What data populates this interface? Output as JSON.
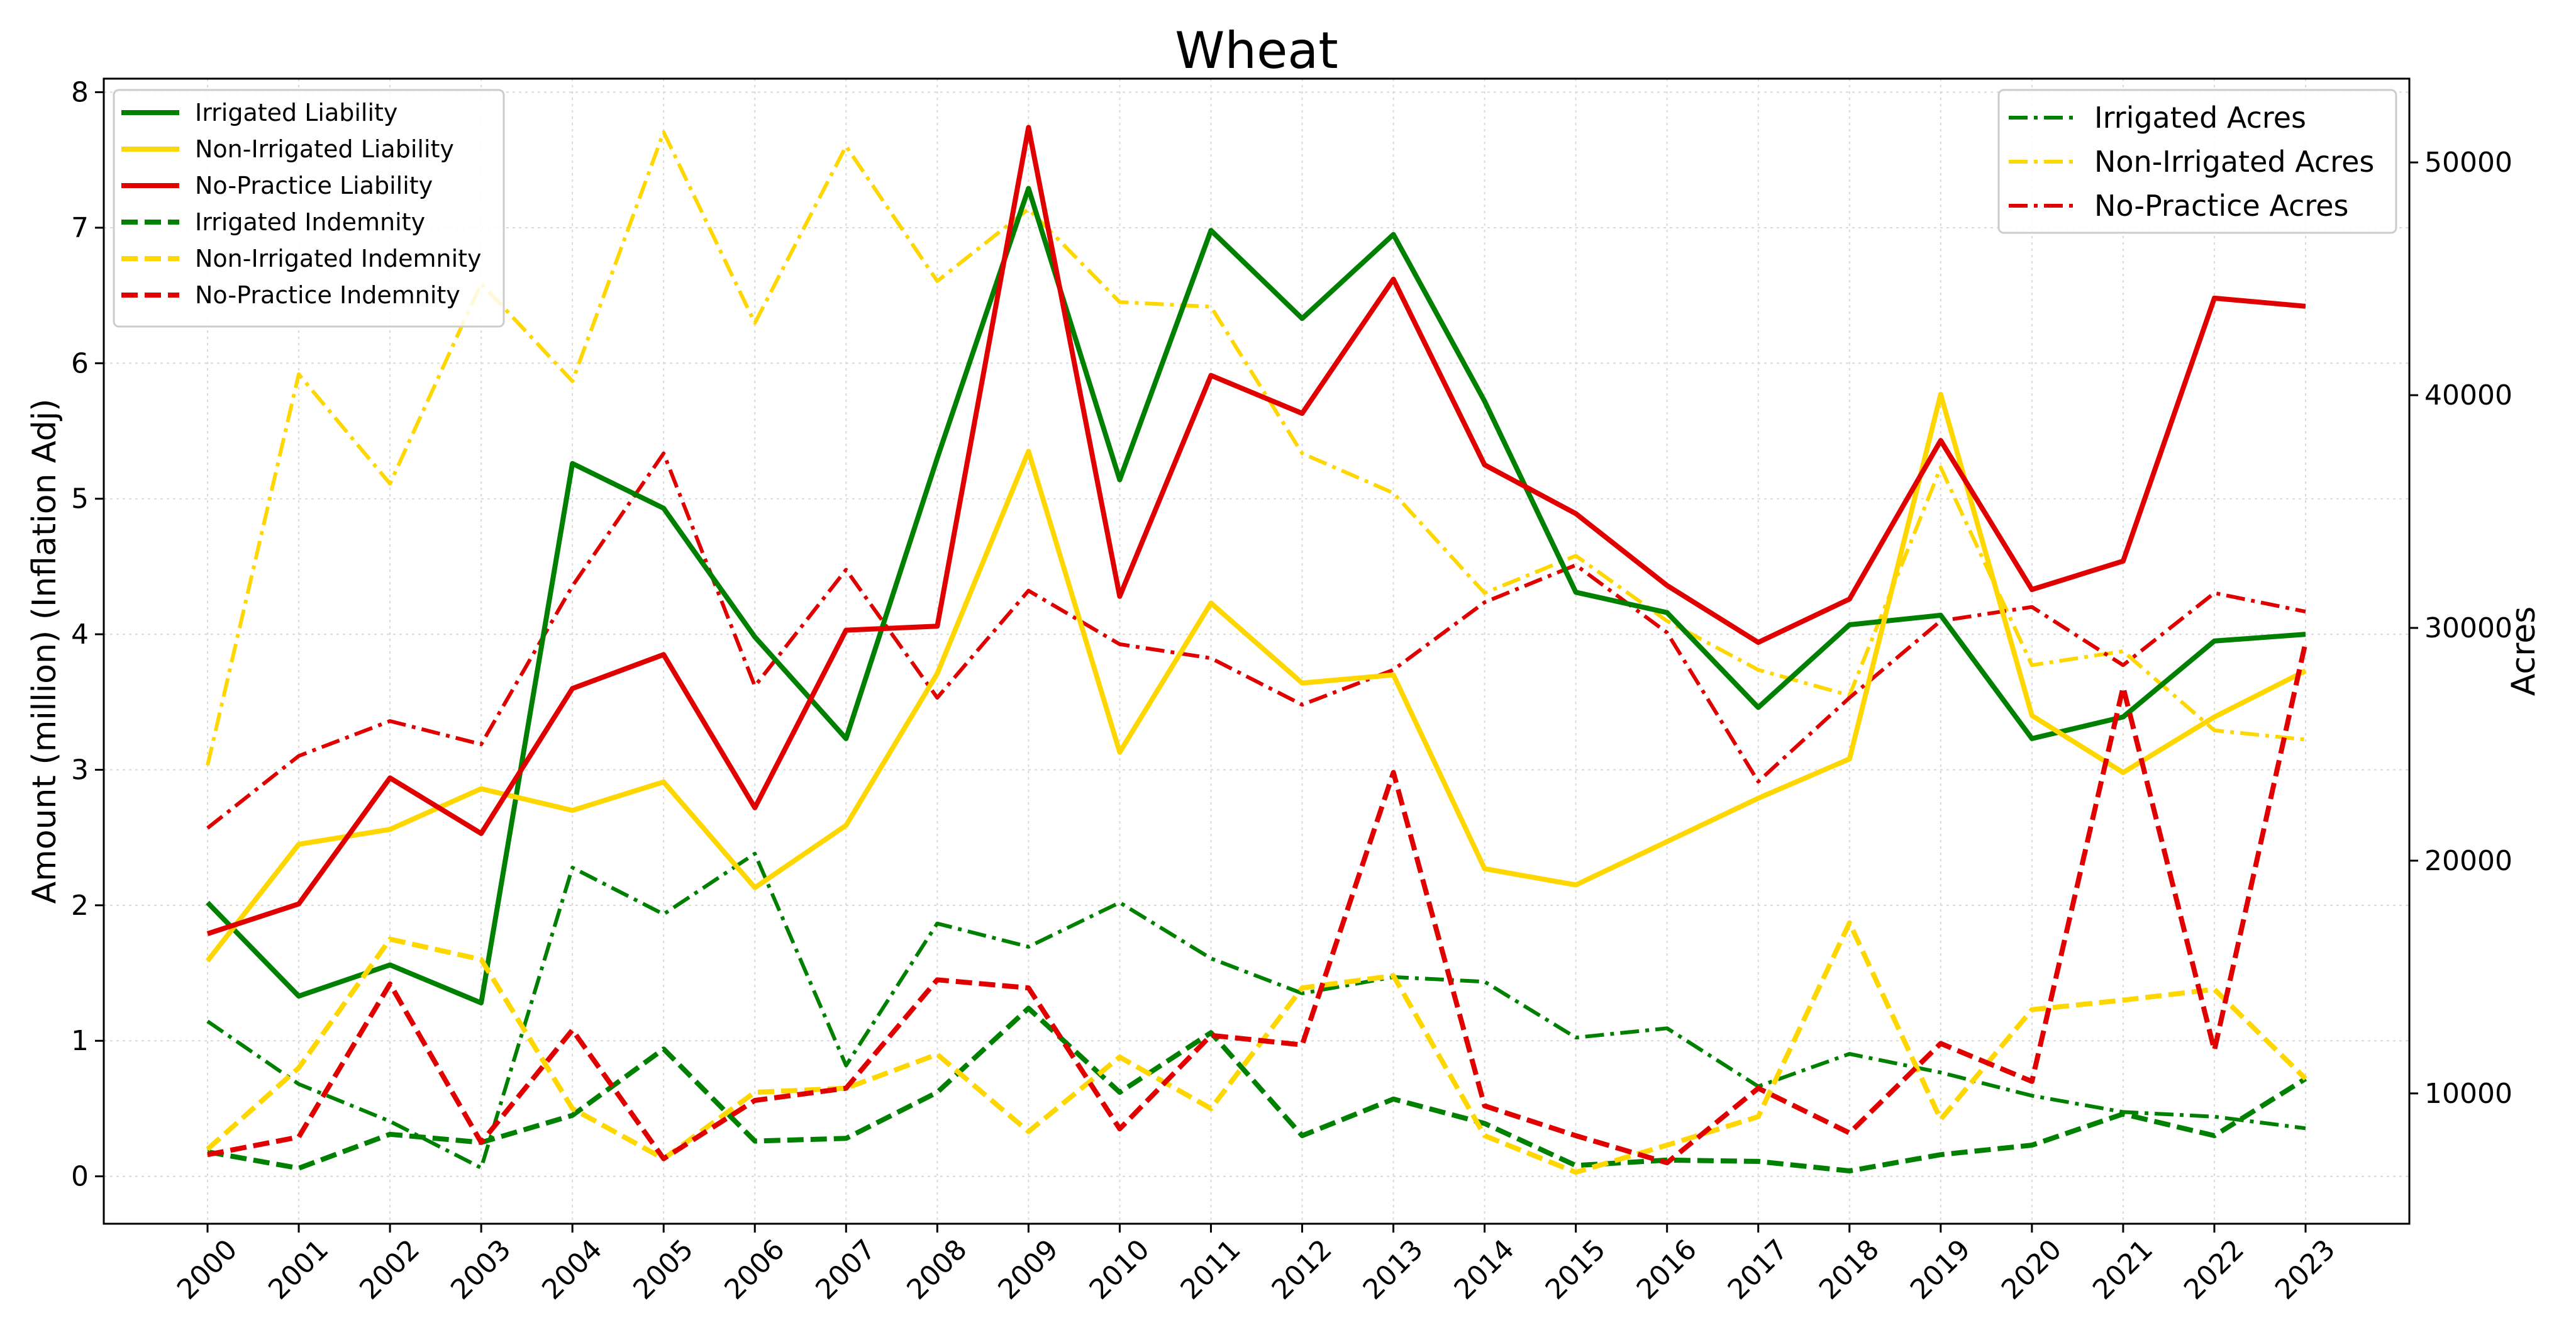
{
  "chart_data": {
    "type": "line",
    "title": "Wheat",
    "xlabel": "",
    "ylabel": "Amount (million) (Inflation Adj)",
    "y2label": "Acres",
    "ylim": [
      -0.35,
      8.1
    ],
    "y2lim": [
      4400,
      53600
    ],
    "yticks": [
      0,
      1,
      2,
      3,
      4,
      5,
      6,
      7,
      8
    ],
    "y2ticks": [
      10000,
      20000,
      30000,
      40000,
      50000
    ],
    "grid": true,
    "x": [
      "2000",
      "2001",
      "2002",
      "2003",
      "2004",
      "2005",
      "2006",
      "2007",
      "2008",
      "2009",
      "2010",
      "2011",
      "2012",
      "2013",
      "2014",
      "2015",
      "2016",
      "2017",
      "2018",
      "2019",
      "2020",
      "2021",
      "2022",
      "2023"
    ],
    "legend_left": {
      "placement": "upper-left",
      "entries": [
        {
          "label": "Irrigated Liability",
          "color": "#008000",
          "dash": "solid"
        },
        {
          "label": "Non-Irrigated Liability",
          "color": "#FFD700",
          "dash": "solid"
        },
        {
          "label": "No-Practice Liability",
          "color": "#E00000",
          "dash": "solid"
        },
        {
          "label": "Irrigated Indemnity",
          "color": "#008000",
          "dash": "dashed"
        },
        {
          "label": "Non-Irrigated Indemnity",
          "color": "#FFD700",
          "dash": "dashed"
        },
        {
          "label": "No-Practice Indemnity",
          "color": "#E00000",
          "dash": "dashed"
        }
      ]
    },
    "legend_right": {
      "placement": "upper-right",
      "entries": [
        {
          "label": "Irrigated Acres",
          "color": "#008000",
          "dash": "dashdot"
        },
        {
          "label": "Non-Irrigated Acres",
          "color": "#FFD700",
          "dash": "dashdot"
        },
        {
          "label": "No-Practice Acres",
          "color": "#E00000",
          "dash": "dashdot"
        }
      ]
    },
    "series": [
      {
        "name": "Irrigated Liability",
        "axis": "left",
        "color": "#008000",
        "dash": "solid",
        "values": [
          2.02,
          1.33,
          1.56,
          1.28,
          5.26,
          4.93,
          3.98,
          3.23,
          5.3,
          7.29,
          5.14,
          6.98,
          6.33,
          6.95,
          5.72,
          4.31,
          4.16,
          3.46,
          4.07,
          4.14,
          3.23,
          3.39,
          3.95,
          4.0
        ]
      },
      {
        "name": "Non-Irrigated Liability",
        "axis": "left",
        "color": "#FFD700",
        "dash": "solid",
        "values": [
          1.59,
          2.45,
          2.56,
          2.86,
          2.7,
          2.91,
          2.13,
          2.59,
          3.71,
          5.35,
          3.13,
          4.23,
          3.64,
          3.7,
          2.27,
          2.15,
          2.47,
          2.79,
          3.08,
          5.77,
          3.4,
          2.98,
          3.39,
          3.73
        ]
      },
      {
        "name": "No-Practice Liability",
        "axis": "left",
        "color": "#E00000",
        "dash": "solid",
        "values": [
          1.79,
          2.01,
          2.94,
          2.53,
          3.6,
          3.85,
          2.72,
          4.03,
          4.06,
          7.74,
          4.28,
          5.91,
          5.63,
          6.62,
          5.25,
          4.89,
          4.36,
          3.94,
          4.26,
          5.43,
          4.33,
          4.54,
          6.48,
          6.42
        ]
      },
      {
        "name": "Irrigated Indemnity",
        "axis": "left",
        "color": "#008000",
        "dash": "dashed",
        "values": [
          0.18,
          0.06,
          0.31,
          0.25,
          0.45,
          0.94,
          0.26,
          0.28,
          0.62,
          1.24,
          0.62,
          1.06,
          0.3,
          0.57,
          0.39,
          0.08,
          0.12,
          0.11,
          0.04,
          0.16,
          0.23,
          0.46,
          0.3,
          0.72
        ]
      },
      {
        "name": "Non-Irrigated Indemnity",
        "axis": "left",
        "color": "#FFD700",
        "dash": "dashed",
        "values": [
          0.2,
          0.8,
          1.75,
          1.6,
          0.5,
          0.13,
          0.62,
          0.65,
          0.9,
          0.33,
          0.88,
          0.5,
          1.39,
          1.48,
          0.3,
          0.03,
          0.23,
          0.44,
          1.87,
          0.42,
          1.23,
          1.3,
          1.38,
          0.72
        ]
      },
      {
        "name": "No-Practice Indemnity",
        "axis": "left",
        "color": "#E00000",
        "dash": "dashed",
        "values": [
          0.16,
          0.29,
          1.42,
          0.25,
          1.08,
          0.13,
          0.56,
          0.65,
          1.45,
          1.39,
          0.35,
          1.04,
          0.97,
          2.98,
          0.52,
          0.3,
          0.1,
          0.65,
          0.32,
          0.98,
          0.7,
          3.61,
          0.93,
          3.94
        ]
      },
      {
        "name": "Irrigated Acres",
        "axis": "right",
        "color": "#008000",
        "dash": "dashdot",
        "values": [
          13100,
          10400,
          8800,
          6800,
          19700,
          17700,
          20300,
          11200,
          17300,
          16300,
          18200,
          15800,
          14300,
          15000,
          14800,
          12400,
          12800,
          10300,
          11700,
          10900,
          9900,
          9200,
          9000,
          8500
        ]
      },
      {
        "name": "Non-Irrigated Acres",
        "axis": "right",
        "color": "#FFD700",
        "dash": "dashdot",
        "values": [
          24100,
          40900,
          36200,
          44800,
          40600,
          51300,
          43100,
          50700,
          44900,
          48000,
          44000,
          43800,
          37500,
          35800,
          31500,
          33100,
          30300,
          28200,
          27100,
          36900,
          28400,
          29000,
          25600,
          25200
        ]
      },
      {
        "name": "No-Practice Acres",
        "axis": "right",
        "color": "#E00000",
        "dash": "dashdot",
        "values": [
          21400,
          24500,
          26000,
          25000,
          31800,
          37500,
          27500,
          32500,
          27000,
          31600,
          29300,
          28700,
          26700,
          28200,
          31100,
          32700,
          29800,
          23400,
          27000,
          30300,
          30900,
          28400,
          31500,
          30700
        ]
      }
    ]
  }
}
